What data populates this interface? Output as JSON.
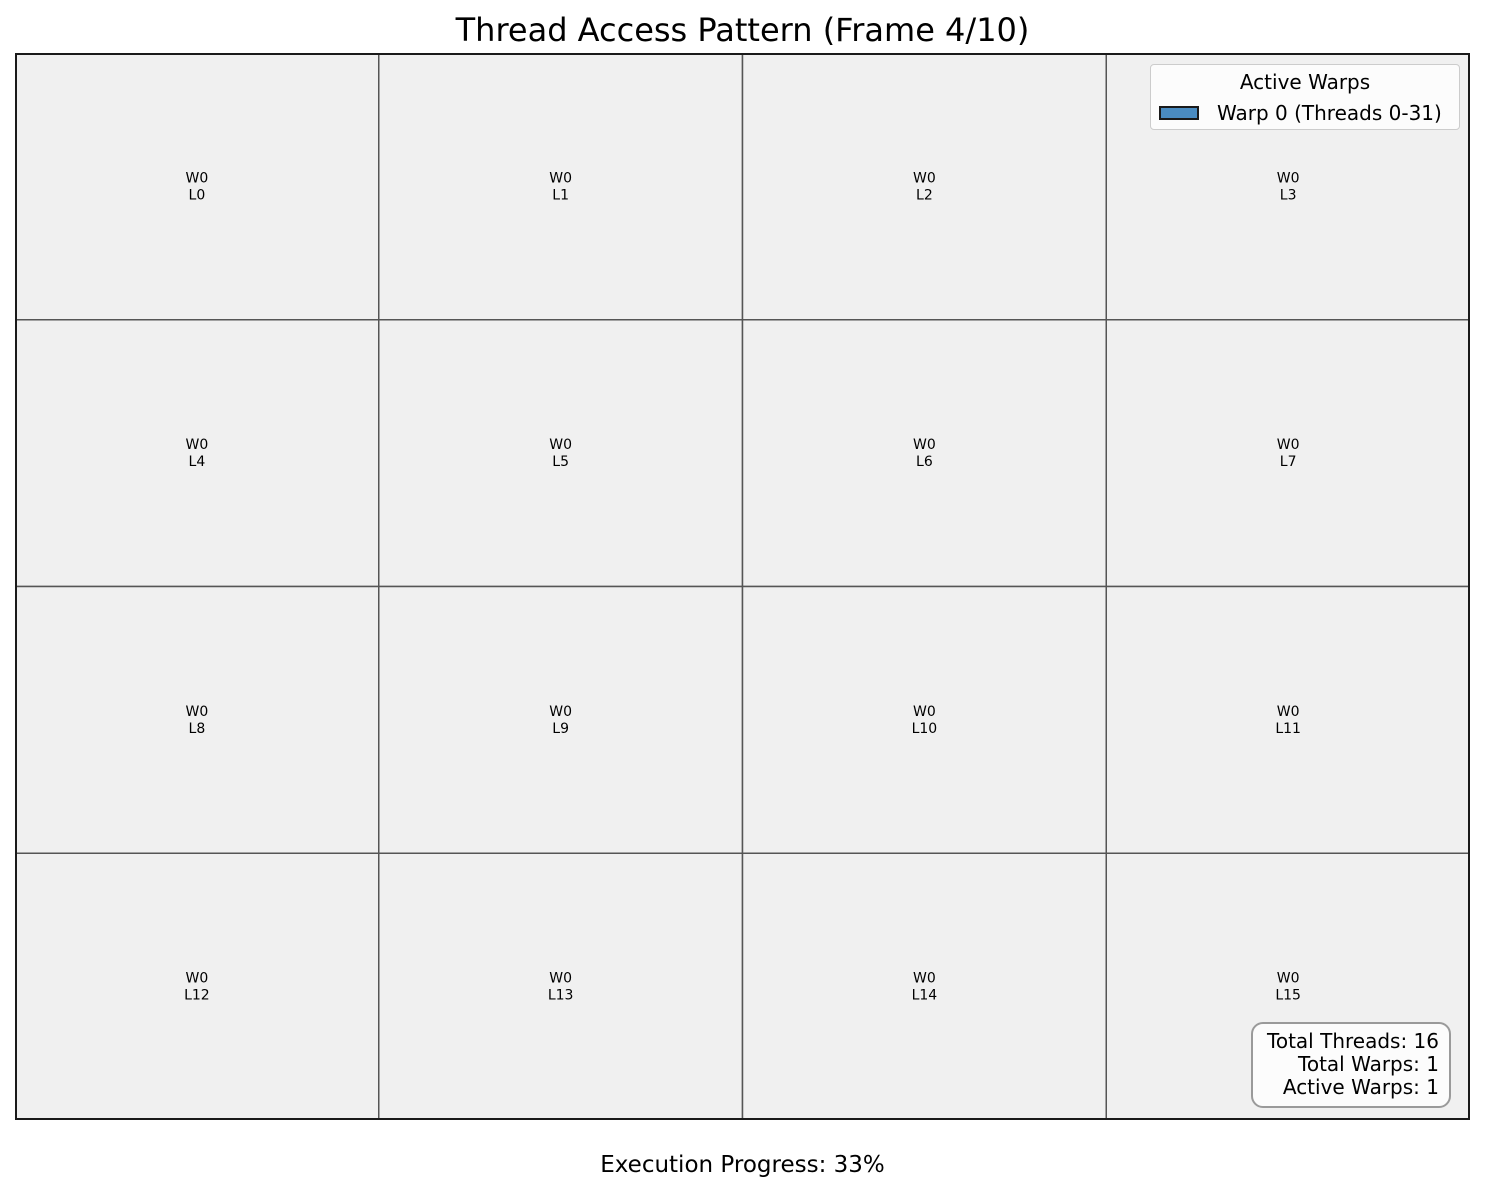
{
  "chart_data": {
    "type": "heatmap",
    "title": "Thread Access Pattern (Frame 4/10)",
    "rows": 4,
    "cols": 4,
    "cells": [
      {
        "warp": "W0",
        "lane": "L0"
      },
      {
        "warp": "W0",
        "lane": "L1"
      },
      {
        "warp": "W0",
        "lane": "L2"
      },
      {
        "warp": "W0",
        "lane": "L3"
      },
      {
        "warp": "W0",
        "lane": "L4"
      },
      {
        "warp": "W0",
        "lane": "L5"
      },
      {
        "warp": "W0",
        "lane": "L6"
      },
      {
        "warp": "W0",
        "lane": "L7"
      },
      {
        "warp": "W0",
        "lane": "L8"
      },
      {
        "warp": "W0",
        "lane": "L9"
      },
      {
        "warp": "W0",
        "lane": "L10"
      },
      {
        "warp": "W0",
        "lane": "L11"
      },
      {
        "warp": "W0",
        "lane": "L12"
      },
      {
        "warp": "W0",
        "lane": "L13"
      },
      {
        "warp": "W0",
        "lane": "L14"
      },
      {
        "warp": "W0",
        "lane": "L15"
      }
    ],
    "legend": {
      "title": "Active Warps",
      "placement": "top-right",
      "entries": [
        {
          "label": "Warp 0 (Threads 0-31)",
          "color": "#4a8cc2"
        }
      ]
    },
    "stats": {
      "total_threads": "Total Threads: 16",
      "total_warps": "Total Warps: 1",
      "active_warps": "Active Warps: 1"
    },
    "progress": {
      "label": "Execution Progress: 33%",
      "percent": 33
    }
  },
  "colors": {
    "cell_fill": "#f0f0f0",
    "grid_line": "#555555",
    "frame": "#1a1a1a"
  }
}
